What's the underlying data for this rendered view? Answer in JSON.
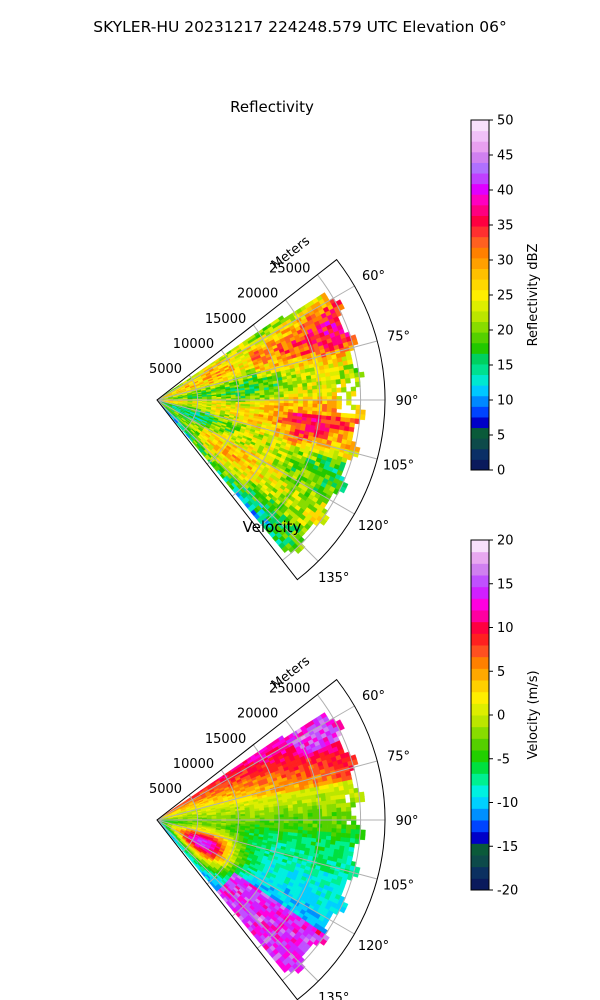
{
  "figure": {
    "suptitle": "SKYLER-HU  20231217  224248.579 UTC Elevation 06°"
  },
  "chart_data": [
    {
      "type": "heatmap",
      "projection": "polar-sector",
      "title": "Reflectivity",
      "radial_label": "Meters",
      "radial_ticks": [
        5000,
        10000,
        15000,
        20000,
        25000
      ],
      "radial_tick_labels": [
        "5000",
        "10000",
        "15000",
        "20000",
        "25000"
      ],
      "radial_max": 28000,
      "angle_range_deg": [
        52,
        142
      ],
      "angle_ticks": [
        60,
        75,
        90,
        105,
        120,
        135
      ],
      "angle_tick_labels": [
        "60°",
        "75°",
        "90°",
        "105°",
        "120°",
        "135°"
      ],
      "grid": true,
      "colorbar": {
        "label": "Reflectivity dBZ",
        "min": 0,
        "max": 50,
        "ticks": [
          0,
          5,
          10,
          15,
          20,
          25,
          30,
          35,
          40,
          45,
          50
        ],
        "tick_labels": [
          "0",
          "5",
          "10",
          "15",
          "20",
          "25",
          "30",
          "35",
          "40",
          "45",
          "50"
        ],
        "position": "right"
      },
      "field_description": "mostly 20–30 dBZ, 30–37 dBZ cells beyond 15000 m between 60° and 80° and near 100°, weaker 15–22 dBZ on the southeast flank near 120°–140°"
    },
    {
      "type": "heatmap",
      "projection": "polar-sector",
      "title": "Velocity",
      "radial_label": "Meters",
      "radial_ticks": [
        5000,
        10000,
        15000,
        20000,
        25000
      ],
      "radial_tick_labels": [
        "5000",
        "10000",
        "15000",
        "20000",
        "25000"
      ],
      "radial_max": 28000,
      "angle_range_deg": [
        52,
        142
      ],
      "angle_ticks": [
        60,
        75,
        90,
        105,
        120,
        135
      ],
      "angle_tick_labels": [
        "60°",
        "75°",
        "90°",
        "105°",
        "120°",
        "135°"
      ],
      "grid": true,
      "colorbar": {
        "label": "Velocity (m/s)",
        "min": -20,
        "max": 20,
        "ticks": [
          -20,
          -15,
          -10,
          -5,
          0,
          5,
          10,
          15,
          20
        ],
        "tick_labels": [
          "-20",
          "-15",
          "-10",
          "-5",
          "0",
          "5",
          "10",
          "15",
          "20"
        ],
        "position": "right"
      },
      "field_description": "outbound 10–18 m/s in the northeast beyond 15000 m near 60°–75°, near 0 m/s around 90°, inbound -5 to -12 m/s toward 115°, 5–15 m/s near the radar between 100° and 135°, folded 15+ m/s at far range near 130°"
    }
  ],
  "colors": {
    "reflectivity_scale": [
      "#0a1a5c",
      "#0b2f66",
      "#0d4a4a",
      "#0a5a3a",
      "#0000c8",
      "#0044ff",
      "#0088ff",
      "#00c8ff",
      "#00e8d0",
      "#00e090",
      "#00d060",
      "#22c800",
      "#55d000",
      "#88dc00",
      "#bbe600",
      "#ddee00",
      "#ffee00",
      "#ffd800",
      "#ffc000",
      "#ffa000",
      "#ff8000",
      "#ff6020",
      "#ff3030",
      "#ff0040",
      "#ff0080",
      "#ff00c0",
      "#e000ff",
      "#c040ff",
      "#b070ff",
      "#d080f0",
      "#e8a0f0",
      "#f0c0f8",
      "#f8e0fb"
    ],
    "velocity_scale": [
      "#0a1a5c",
      "#0b3060",
      "#0d4a4a",
      "#0a5a3a",
      "#0000c8",
      "#0044ff",
      "#0090ff",
      "#00d0ff",
      "#00f0e0",
      "#00f090",
      "#00e040",
      "#22d000",
      "#55d000",
      "#88dc00",
      "#bbe600",
      "#ddee00",
      "#ffee00",
      "#ffd000",
      "#ffa800",
      "#ff8000",
      "#ff5020",
      "#ff2020",
      "#ff0040",
      "#ff00a0",
      "#ff00e0",
      "#d020ff",
      "#c050ff",
      "#d080f0",
      "#e8a8f0",
      "#f8e0fb"
    ]
  }
}
